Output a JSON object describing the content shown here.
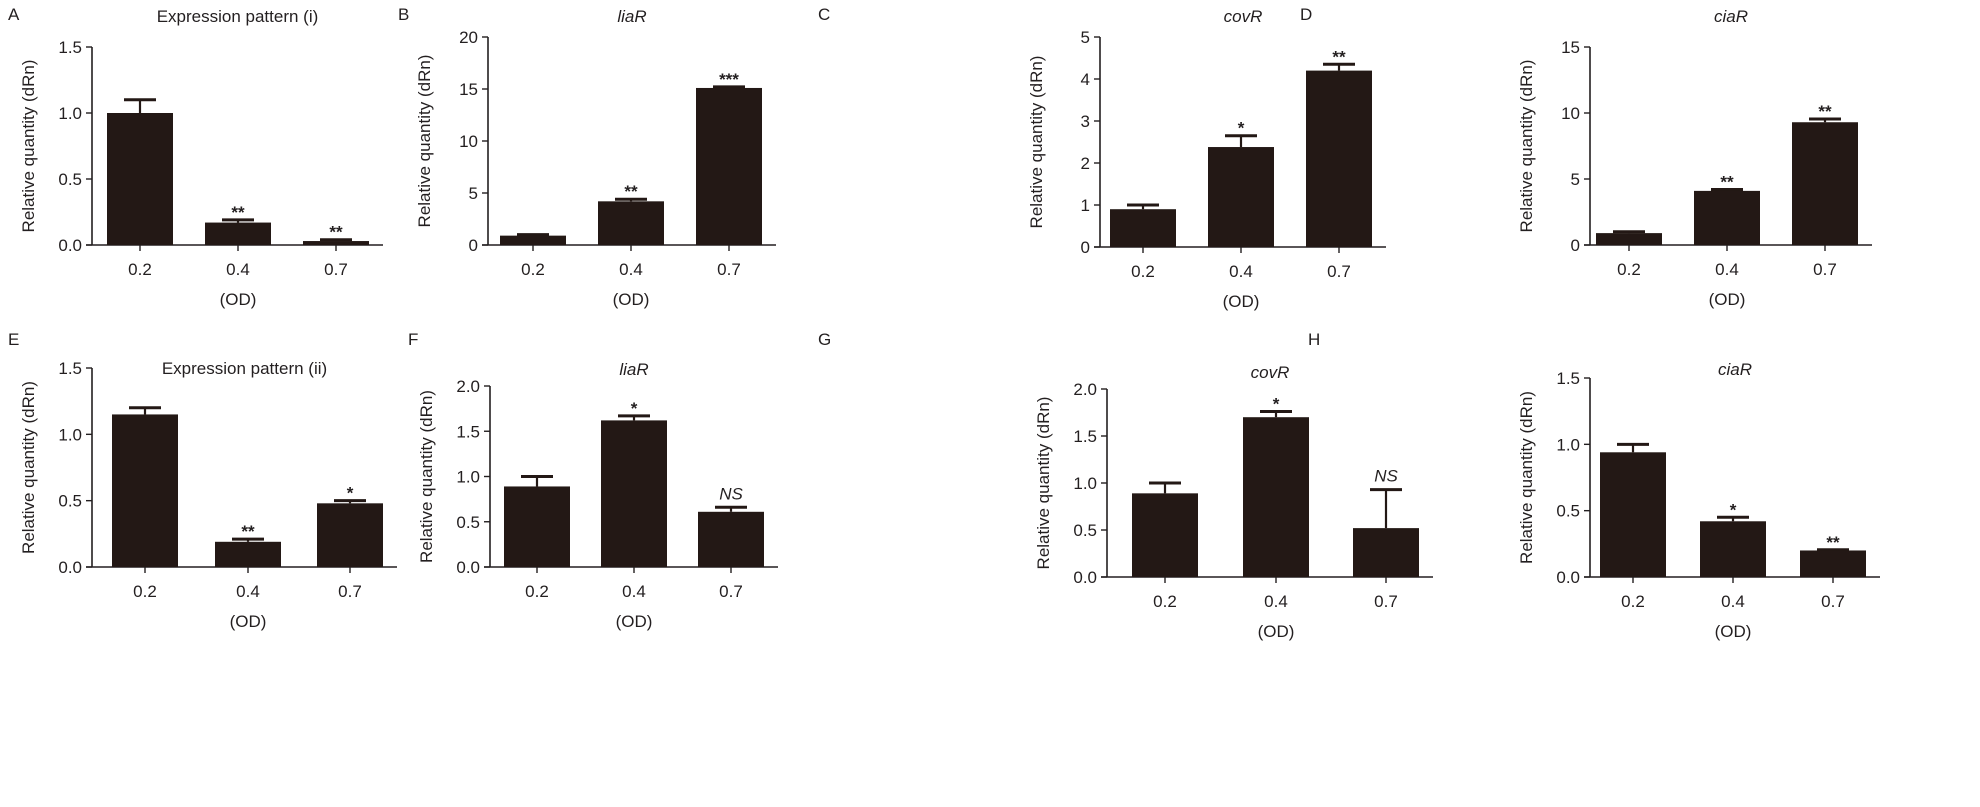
{
  "chart_data": [
    {
      "panel": "A",
      "type": "bar",
      "title": "Expression pattern (i)",
      "title_italic": false,
      "ylabel": "Relative quantity (dRn)",
      "xlabel": "(OD)",
      "categories": [
        "0.2",
        "0.4",
        "0.7"
      ],
      "values": [
        1.0,
        0.17,
        0.03
      ],
      "errors": [
        0.1,
        0.02,
        0.01
      ],
      "significance": [
        "",
        "**",
        "**"
      ],
      "ylim": [
        0,
        1.5
      ],
      "yticks": [
        0,
        0.5,
        1.0,
        1.5
      ],
      "ytick_labels": [
        "0.0",
        "0.5",
        "1.0",
        "1.5"
      ]
    },
    {
      "panel": "B",
      "type": "bar",
      "title": "liaR",
      "title_italic": true,
      "ylabel": "Relative quantity (dRn)",
      "xlabel": "(OD)",
      "categories": [
        "0.2",
        "0.4",
        "0.7"
      ],
      "values": [
        0.9,
        4.2,
        15.1
      ],
      "errors": [
        0.1,
        0.2,
        0.1
      ],
      "significance": [
        "",
        "**",
        "***"
      ],
      "ylim": [
        0,
        20
      ],
      "yticks": [
        0,
        5,
        10,
        15,
        20
      ],
      "ytick_labels": [
        "0",
        "5",
        "10",
        "15",
        "20"
      ]
    },
    {
      "panel": "C",
      "type": "bar",
      "title": "covR",
      "title_italic": true,
      "ylabel": "Relative quantity (dRn)",
      "xlabel": "(OD)",
      "categories": [
        "0.2",
        "0.4",
        "0.7"
      ],
      "values": [
        0.9,
        2.38,
        4.2
      ],
      "errors": [
        0.1,
        0.27,
        0.15
      ],
      "significance": [
        "",
        "*",
        "**"
      ],
      "ylim": [
        0,
        5
      ],
      "yticks": [
        0,
        1,
        2,
        3,
        4,
        5
      ],
      "ytick_labels": [
        "0",
        "1",
        "2",
        "3",
        "4",
        "5"
      ]
    },
    {
      "panel": "D",
      "type": "bar",
      "title": "ciaR",
      "title_italic": true,
      "ylabel": "Relative quantity (dRn)",
      "xlabel": "(OD)",
      "categories": [
        "0.2",
        "0.4",
        "0.7"
      ],
      "values": [
        0.9,
        4.1,
        9.3
      ],
      "errors": [
        0.1,
        0.1,
        0.25
      ],
      "significance": [
        "",
        "**",
        "**"
      ],
      "ylim": [
        0,
        15
      ],
      "yticks": [
        0,
        5,
        10,
        15
      ],
      "ytick_labels": [
        "0",
        "5",
        "10",
        "15"
      ]
    },
    {
      "panel": "E",
      "type": "bar",
      "title": "Expression pattern (ii)",
      "title_italic": false,
      "ylabel": "Relative quantity (dRn)",
      "xlabel": "(OD)",
      "categories": [
        "0.2",
        "0.4",
        "0.7"
      ],
      "values": [
        1.15,
        0.19,
        0.48
      ],
      "errors": [
        0.05,
        0.02,
        0.02
      ],
      "significance": [
        "",
        "**",
        "*"
      ],
      "ylim": [
        0,
        1.5
      ],
      "yticks": [
        0,
        0.5,
        1.0,
        1.5
      ],
      "ytick_labels": [
        "0.0",
        "0.5",
        "1.0",
        "1.5"
      ]
    },
    {
      "panel": "F",
      "type": "bar",
      "title": "liaR",
      "title_italic": true,
      "ylabel": "Relative quantity (dRn)",
      "xlabel": "(OD)",
      "categories": [
        "0.2",
        "0.4",
        "0.7"
      ],
      "values": [
        0.89,
        1.62,
        0.61
      ],
      "errors": [
        0.11,
        0.05,
        0.05
      ],
      "significance": [
        "",
        "*",
        "NS"
      ],
      "ylim": [
        0,
        2.0
      ],
      "yticks": [
        0,
        0.5,
        1.0,
        1.5,
        2.0
      ],
      "ytick_labels": [
        "0.0",
        "0.5",
        "1.0",
        "1.5",
        "2.0"
      ]
    },
    {
      "panel": "G",
      "type": "bar",
      "title": "covR",
      "title_italic": true,
      "ylabel": "Relative quantity (dRn)",
      "xlabel": "(OD)",
      "categories": [
        "0.2",
        "0.4",
        "0.7"
      ],
      "values": [
        0.89,
        1.7,
        0.52
      ],
      "errors": [
        0.11,
        0.06,
        0.41
      ],
      "significance": [
        "",
        "*",
        "NS"
      ],
      "ylim": [
        0,
        2.0
      ],
      "yticks": [
        0,
        0.5,
        1.0,
        1.5,
        2.0
      ],
      "ytick_labels": [
        "0.0",
        "0.5",
        "1.0",
        "1.5",
        "2.0"
      ]
    },
    {
      "panel": "H",
      "type": "bar",
      "title": "ciaR",
      "title_italic": true,
      "ylabel": "Relative quantity (dRn)",
      "xlabel": "(OD)",
      "categories": [
        "0.2",
        "0.4",
        "0.7"
      ],
      "values": [
        0.94,
        0.42,
        0.2
      ],
      "errors": [
        0.06,
        0.03,
        0.005
      ],
      "significance": [
        "",
        "*",
        "**"
      ],
      "ylim": [
        0,
        1.5
      ],
      "yticks": [
        0,
        0.5,
        1.0,
        1.5
      ],
      "ytick_labels": [
        "0.0",
        "0.5",
        "1.0",
        "1.5"
      ]
    }
  ],
  "colors": {
    "bar": "#231815",
    "axis": "#231f20"
  }
}
